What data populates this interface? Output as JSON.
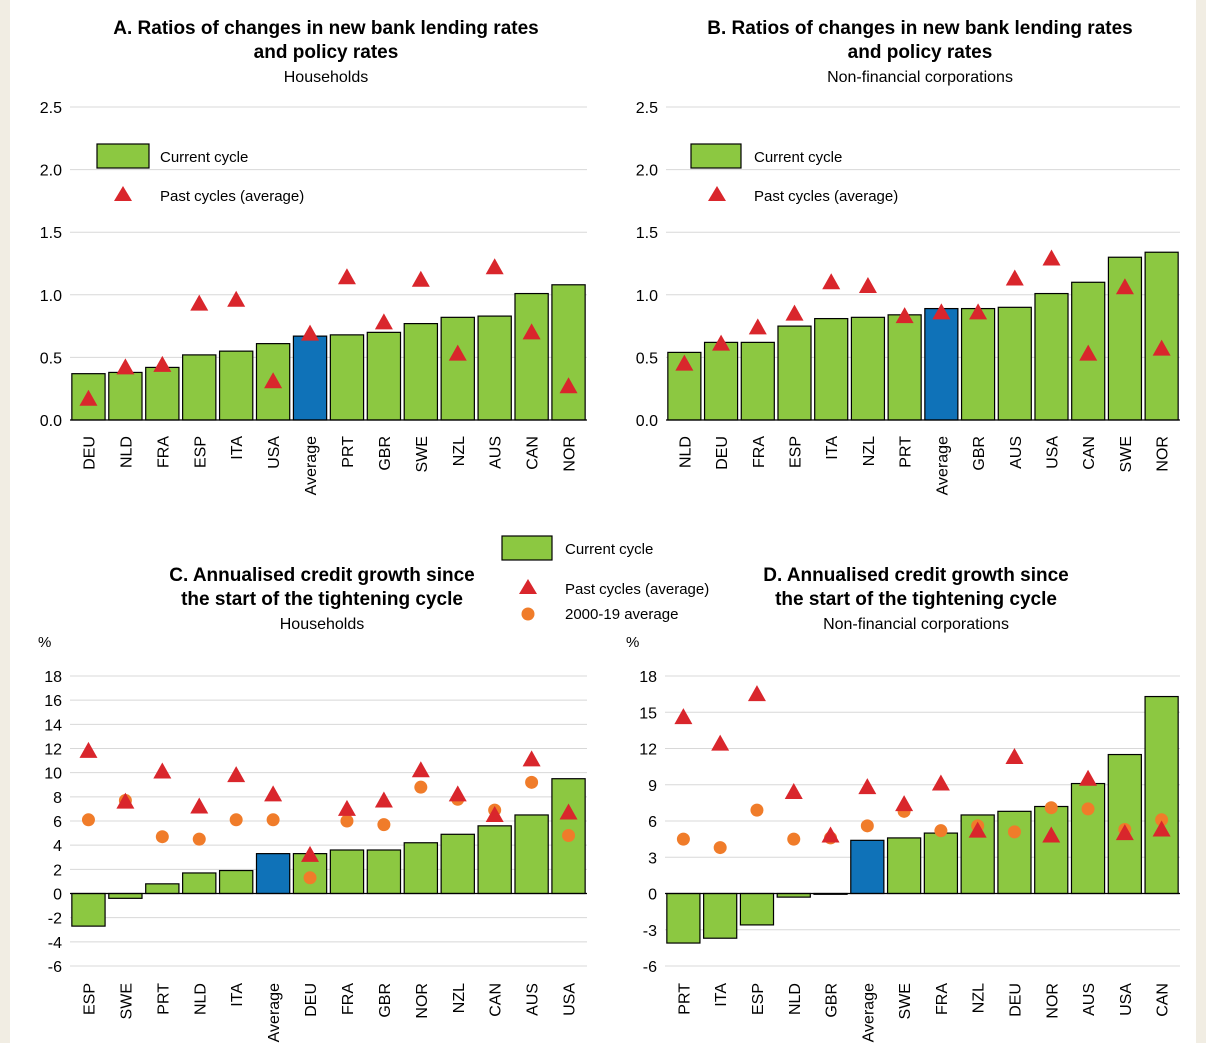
{
  "colors": {
    "bar": "#8cc841",
    "bar_highlight": "#0f72b8",
    "triangle": "#d9262c",
    "circle": "#f07c2a",
    "grid": "#d8d8d8"
  },
  "legend_top": {
    "current": "Current cycle",
    "past": "Past cycles (average)"
  },
  "legend_mid": {
    "current": "Current cycle",
    "past": "Past cycles (average)",
    "avg2000": "2000-19 average"
  },
  "chart_data": [
    {
      "id": "A",
      "type": "bar",
      "title_lines": [
        "A. Ratios of changes in new bank lending rates",
        "and policy rates"
      ],
      "subtitle": "Households",
      "unit_label": "",
      "ylim": [
        0,
        2.5
      ],
      "yticks": [
        0.0,
        0.5,
        1.0,
        1.5,
        2.0,
        2.5
      ],
      "ytick_labels": [
        "0.0",
        "0.5",
        "1.0",
        "1.5",
        "2.0",
        "2.5"
      ],
      "categories": [
        "DEU",
        "NLD",
        "FRA",
        "ESP",
        "ITA",
        "USA",
        "Average",
        "PRT",
        "GBR",
        "SWE",
        "NZL",
        "AUS",
        "CAN",
        "NOR"
      ],
      "highlight": "Average",
      "series": [
        {
          "name": "Current cycle",
          "kind": "bar",
          "values": [
            0.37,
            0.38,
            0.42,
            0.52,
            0.55,
            0.61,
            0.67,
            0.68,
            0.7,
            0.77,
            0.82,
            0.83,
            1.01,
            1.08
          ]
        },
        {
          "name": "Past cycles (average)",
          "kind": "triangle",
          "values": [
            0.17,
            0.42,
            0.44,
            0.93,
            0.96,
            0.31,
            0.69,
            1.14,
            0.78,
            1.12,
            0.53,
            1.22,
            0.7,
            0.27
          ]
        }
      ]
    },
    {
      "id": "B",
      "type": "bar",
      "title_lines": [
        "B. Ratios of changes in new bank lending rates",
        "and policy rates"
      ],
      "subtitle": "Non-financial corporations",
      "unit_label": "",
      "ylim": [
        0,
        2.5
      ],
      "yticks": [
        0.0,
        0.5,
        1.0,
        1.5,
        2.0,
        2.5
      ],
      "ytick_labels": [
        "0.0",
        "0.5",
        "1.0",
        "1.5",
        "2.0",
        "2.5"
      ],
      "categories": [
        "NLD",
        "DEU",
        "FRA",
        "ESP",
        "ITA",
        "NZL",
        "PRT",
        "Average",
        "GBR",
        "AUS",
        "USA",
        "CAN",
        "SWE",
        "NOR"
      ],
      "highlight": "Average",
      "series": [
        {
          "name": "Current cycle",
          "kind": "bar",
          "values": [
            0.54,
            0.62,
            0.62,
            0.75,
            0.81,
            0.82,
            0.84,
            0.89,
            0.89,
            0.9,
            1.01,
            1.1,
            1.3,
            1.34
          ]
        },
        {
          "name": "Past cycles (average)",
          "kind": "triangle",
          "values": [
            0.45,
            0.61,
            0.74,
            0.85,
            1.1,
            1.07,
            0.83,
            0.86,
            0.86,
            1.13,
            1.29,
            0.53,
            1.06,
            0.57
          ]
        }
      ]
    },
    {
      "id": "C",
      "type": "bar",
      "title_lines": [
        "C. Annualised credit growth since",
        "the start of the tightening cycle"
      ],
      "subtitle": "Households",
      "unit_label": "%",
      "ylim": [
        -6,
        18
      ],
      "yticks": [
        -6,
        -4,
        -2,
        0,
        2,
        4,
        6,
        8,
        10,
        12,
        14,
        16,
        18
      ],
      "ytick_labels": [
        "-6",
        "-4",
        "-2",
        "0",
        "2",
        "4",
        "6",
        "8",
        "10",
        "12",
        "14",
        "16",
        "18"
      ],
      "categories": [
        "ESP",
        "SWE",
        "PRT",
        "NLD",
        "ITA",
        "Average",
        "DEU",
        "FRA",
        "GBR",
        "NOR",
        "NZL",
        "CAN",
        "AUS",
        "USA"
      ],
      "highlight": "Average",
      "series": [
        {
          "name": "Current cycle",
          "kind": "bar",
          "values": [
            -2.7,
            -0.4,
            0.8,
            1.7,
            1.9,
            3.3,
            3.3,
            3.6,
            3.6,
            4.2,
            4.9,
            5.6,
            6.5,
            9.5
          ]
        },
        {
          "name": "Past cycles (average)",
          "kind": "triangle",
          "values": [
            11.8,
            7.6,
            10.1,
            7.2,
            9.8,
            8.2,
            3.2,
            7.0,
            7.7,
            10.2,
            8.2,
            6.5,
            11.1,
            6.7
          ]
        },
        {
          "name": "2000-19 average",
          "kind": "circle",
          "values": [
            6.1,
            7.7,
            4.7,
            4.5,
            6.1,
            6.1,
            1.3,
            6.0,
            5.7,
            8.8,
            7.8,
            6.9,
            9.2,
            4.8
          ]
        }
      ]
    },
    {
      "id": "D",
      "type": "bar",
      "title_lines": [
        "D. Annualised credit growth since",
        "the start of the tightening cycle"
      ],
      "subtitle": "Non-financial corporations",
      "unit_label": "%",
      "ylim": [
        -6,
        18
      ],
      "yticks": [
        -6,
        -3,
        0,
        3,
        6,
        9,
        12,
        15,
        18
      ],
      "ytick_labels": [
        "-6",
        "-3",
        "0",
        "3",
        "6",
        "9",
        "12",
        "15",
        "18"
      ],
      "categories": [
        "PRT",
        "ITA",
        "ESP",
        "NLD",
        "GBR",
        "Average",
        "SWE",
        "FRA",
        "NZL",
        "DEU",
        "NOR",
        "AUS",
        "USA",
        "CAN"
      ],
      "highlight": "Average",
      "series": [
        {
          "name": "Current cycle",
          "kind": "bar",
          "values": [
            -4.1,
            -3.7,
            -2.6,
            -0.3,
            0.0,
            4.4,
            4.6,
            5.0,
            6.5,
            6.8,
            7.2,
            9.1,
            11.5,
            16.3
          ]
        },
        {
          "name": "Past cycles (average)",
          "kind": "triangle",
          "values": [
            14.6,
            12.4,
            16.5,
            8.4,
            4.8,
            8.8,
            7.4,
            9.1,
            5.2,
            11.3,
            4.8,
            9.5,
            5.0,
            5.3
          ]
        },
        {
          "name": "2000-19 average",
          "kind": "circle",
          "values": [
            4.5,
            3.8,
            6.9,
            4.5,
            4.6,
            5.6,
            6.8,
            5.2,
            5.6,
            5.1,
            7.1,
            7.0,
            5.3,
            6.1
          ]
        }
      ]
    }
  ]
}
